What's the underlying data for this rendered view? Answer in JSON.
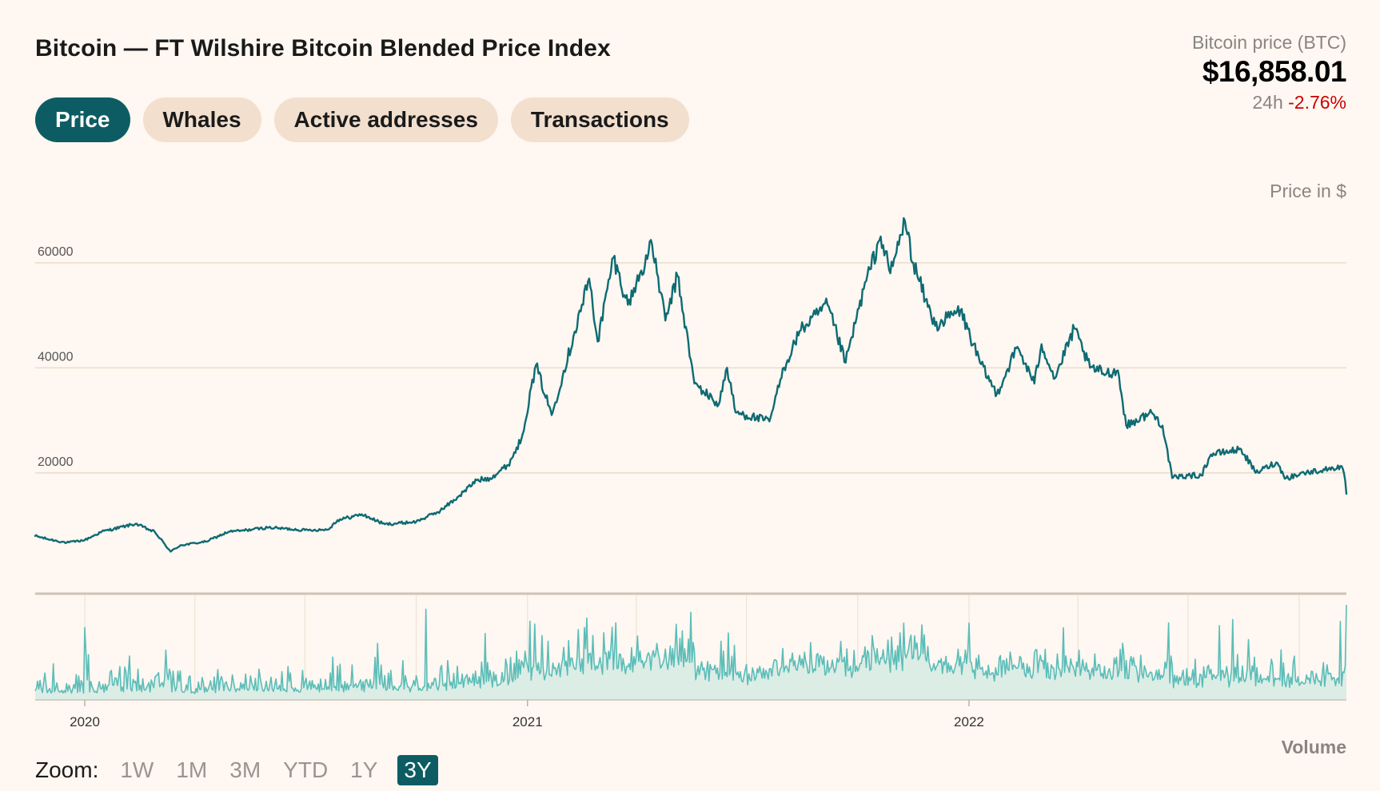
{
  "header": {
    "title": "Bitcoin — FT Wilshire Bitcoin Blended Price Index"
  },
  "tabs": [
    {
      "label": "Price",
      "active": true
    },
    {
      "label": "Whales",
      "active": false
    },
    {
      "label": "Active addresses",
      "active": false
    },
    {
      "label": "Transactions",
      "active": false
    }
  ],
  "ticker": {
    "label": "Bitcoin price (BTC)",
    "price": "$16,858.01",
    "change_period": "24h",
    "change_value": "-2.76%"
  },
  "unit_label": "Price in $",
  "volume_label": "Volume",
  "zoom": {
    "label": "Zoom:",
    "options": [
      "1W",
      "1M",
      "3M",
      "YTD",
      "1Y",
      "3Y"
    ],
    "active": "3Y"
  },
  "colors": {
    "accent": "#0D5C63",
    "price_line": "#0D6B73",
    "volume_line": "#5BBDB8",
    "volume_fill": "#DCEDE6",
    "negative": "#cc0000",
    "background": "#FFF7F1",
    "tab_bg": "#F2DFCE"
  },
  "chart_data": {
    "type": "line",
    "xlabel": "",
    "ylabel": "Price in $",
    "x_range": [
      "2019-11-21",
      "2022-11-09"
    ],
    "ylim": [
      -3000,
      72000
    ],
    "y_ticks": [
      20000,
      40000,
      60000
    ],
    "y_tick_labels": [
      "20000",
      "40000",
      "60000"
    ],
    "x_tick_labels": [
      {
        "date": "2020-01-01",
        "label": "2020"
      },
      {
        "date": "2021-01-01",
        "label": "2021"
      },
      {
        "date": "2022-01-01",
        "label": "2022"
      }
    ],
    "grid": true,
    "series": [
      {
        "name": "Bitcoin price (BTC)",
        "points": [
          [
            "2019-11-21",
            8000
          ],
          [
            "2019-12-01",
            7400
          ],
          [
            "2019-12-17",
            6700
          ],
          [
            "2020-01-01",
            7200
          ],
          [
            "2020-01-15",
            8800
          ],
          [
            "2020-02-12",
            10300
          ],
          [
            "2020-02-28",
            8700
          ],
          [
            "2020-03-12",
            5000
          ],
          [
            "2020-03-20",
            6200
          ],
          [
            "2020-04-10",
            6900
          ],
          [
            "2020-04-29",
            8800
          ],
          [
            "2020-05-10",
            9000
          ],
          [
            "2020-06-01",
            9600
          ],
          [
            "2020-07-01",
            9100
          ],
          [
            "2020-07-20",
            9200
          ],
          [
            "2020-07-28",
            11000
          ],
          [
            "2020-08-17",
            12100
          ],
          [
            "2020-09-05",
            10200
          ],
          [
            "2020-10-01",
            10700
          ],
          [
            "2020-10-21",
            12800
          ],
          [
            "2020-11-05",
            15500
          ],
          [
            "2020-11-20",
            18600
          ],
          [
            "2020-12-01",
            19000
          ],
          [
            "2020-12-16",
            21500
          ],
          [
            "2020-12-27",
            26500
          ],
          [
            "2021-01-08",
            40500
          ],
          [
            "2021-01-21",
            31000
          ],
          [
            "2021-02-08",
            46000
          ],
          [
            "2021-02-21",
            57000
          ],
          [
            "2021-02-28",
            45000
          ],
          [
            "2021-03-13",
            61000
          ],
          [
            "2021-03-25",
            52000
          ],
          [
            "2021-04-14",
            63500
          ],
          [
            "2021-04-25",
            49000
          ],
          [
            "2021-05-05",
            57500
          ],
          [
            "2021-05-19",
            37000
          ],
          [
            "2021-06-08",
            33000
          ],
          [
            "2021-06-15",
            40000
          ],
          [
            "2021-06-22",
            31500
          ],
          [
            "2021-07-20",
            29800
          ],
          [
            "2021-08-01",
            40000
          ],
          [
            "2021-08-14",
            47000
          ],
          [
            "2021-09-06",
            52000
          ],
          [
            "2021-09-21",
            41000
          ],
          [
            "2021-10-06",
            55000
          ],
          [
            "2021-10-20",
            65000
          ],
          [
            "2021-10-28",
            58000
          ],
          [
            "2021-11-09",
            68000
          ],
          [
            "2021-11-16",
            60000
          ],
          [
            "2021-11-26",
            53000
          ],
          [
            "2021-12-04",
            48000
          ],
          [
            "2021-12-25",
            51000
          ],
          [
            "2022-01-10",
            41000
          ],
          [
            "2022-01-24",
            35000
          ],
          [
            "2022-02-10",
            44000
          ],
          [
            "2022-02-24",
            37000
          ],
          [
            "2022-03-02",
            44500
          ],
          [
            "2022-03-13",
            38000
          ],
          [
            "2022-03-29",
            47500
          ],
          [
            "2022-04-11",
            40000
          ],
          [
            "2022-04-25",
            39000
          ],
          [
            "2022-05-04",
            39500
          ],
          [
            "2022-05-11",
            29000
          ],
          [
            "2022-06-01",
            31500
          ],
          [
            "2022-06-10",
            29000
          ],
          [
            "2022-06-18",
            19000
          ],
          [
            "2022-07-01",
            19500
          ],
          [
            "2022-07-12",
            19500
          ],
          [
            "2022-07-20",
            23500
          ],
          [
            "2022-08-14",
            24500
          ],
          [
            "2022-08-26",
            20000
          ],
          [
            "2022-09-12",
            22000
          ],
          [
            "2022-09-20",
            19000
          ],
          [
            "2022-10-05",
            20000
          ],
          [
            "2022-10-25",
            20700
          ],
          [
            "2022-11-05",
            21300
          ],
          [
            "2022-11-08",
            18500
          ],
          [
            "2022-11-09",
            16000
          ]
        ]
      }
    ]
  }
}
